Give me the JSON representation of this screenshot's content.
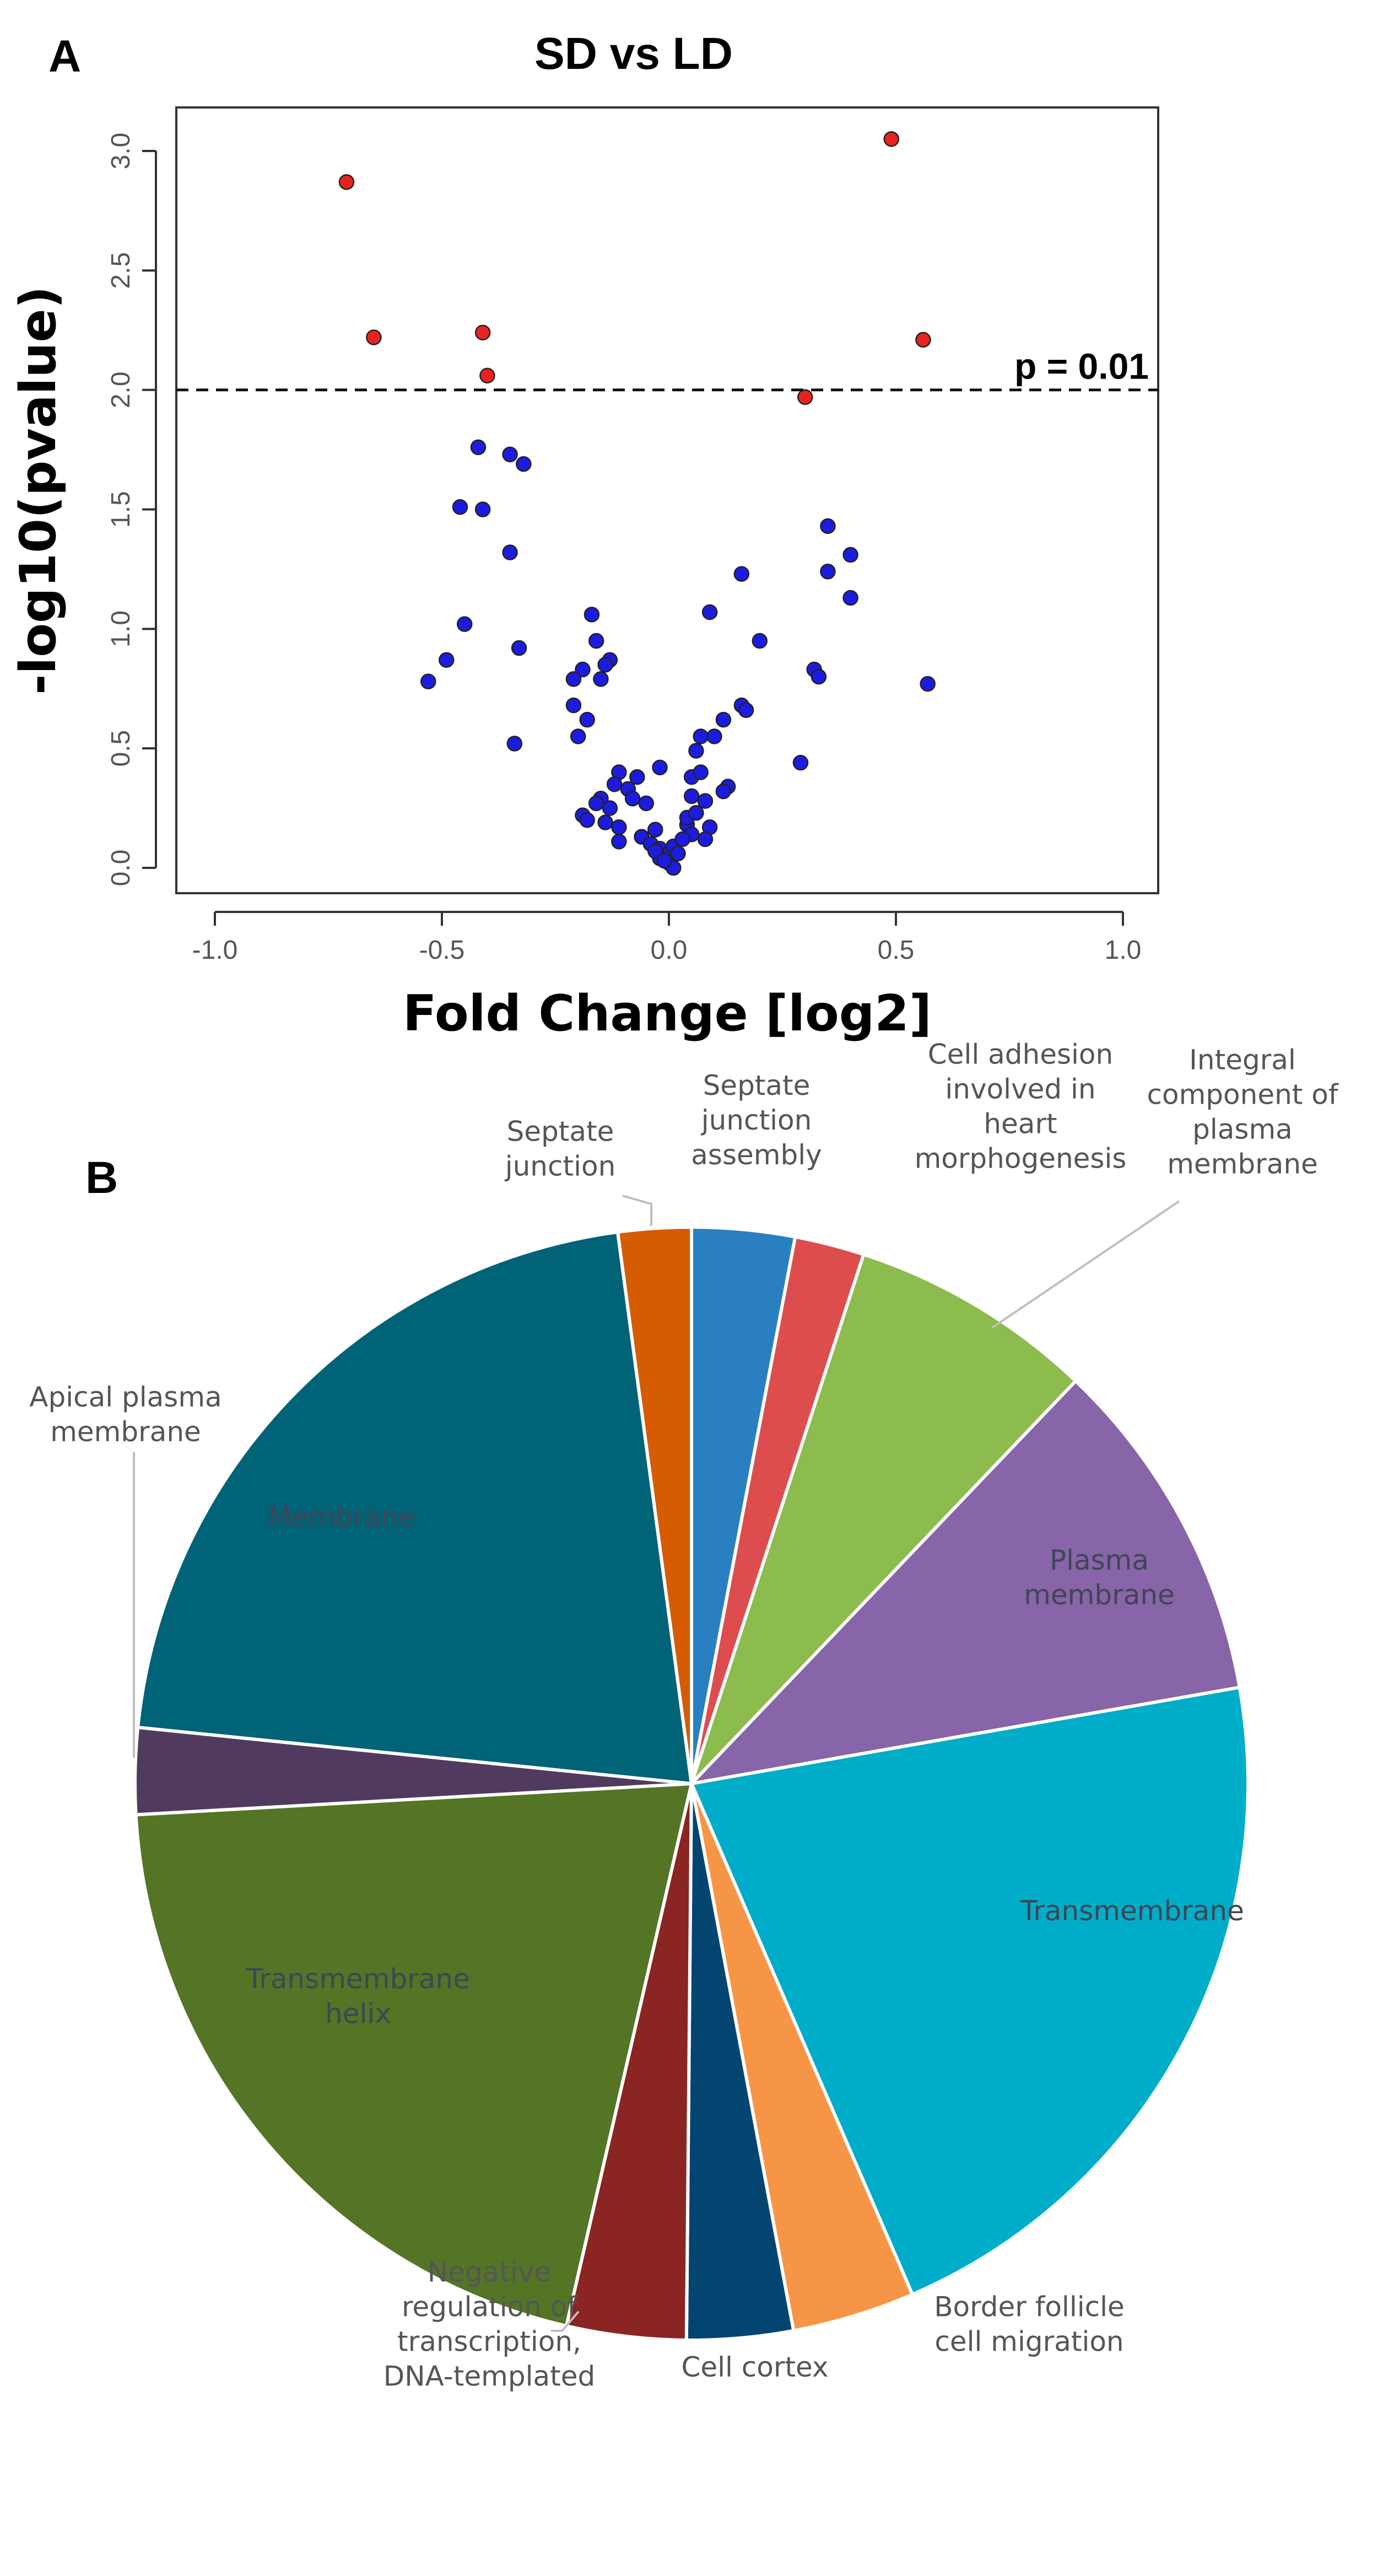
{
  "panels": {
    "a_letter": "A",
    "b_letter": "B"
  },
  "chart_data": [
    {
      "type": "scatter",
      "title": "SD vs LD",
      "xlabel": "Fold Change [log2]",
      "ylabel": "-log10(pvalue)",
      "xlim": [
        -1.0,
        1.0
      ],
      "ylim": [
        0.0,
        3.0
      ],
      "x_ticks": [
        "-1.0",
        "-0.5",
        "0.0",
        "0.5",
        "1.0"
      ],
      "y_ticks": [
        "0.0",
        "0.5",
        "1.0",
        "1.5",
        "2.0",
        "2.5",
        "3.0"
      ],
      "threshold": {
        "value": 2.0,
        "label": "p = 0.01"
      },
      "colors": {
        "significant": "#e8231f",
        "not_significant": "#1c1ce0",
        "outline": "#222222"
      },
      "series": [
        {
          "name": "significant",
          "points": [
            [
              -0.71,
              2.87
            ],
            [
              -0.65,
              2.22
            ],
            [
              -0.41,
              2.24
            ],
            [
              -0.4,
              2.06
            ],
            [
              0.3,
              1.97
            ],
            [
              0.49,
              3.05
            ],
            [
              0.56,
              2.21
            ]
          ]
        },
        {
          "name": "not significant",
          "points": [
            [
              -0.42,
              1.76
            ],
            [
              -0.35,
              1.73
            ],
            [
              -0.32,
              1.69
            ],
            [
              -0.46,
              1.51
            ],
            [
              -0.41,
              1.5
            ],
            [
              -0.35,
              1.32
            ],
            [
              -0.45,
              1.02
            ],
            [
              -0.49,
              0.87
            ],
            [
              -0.53,
              0.78
            ],
            [
              -0.33,
              0.92
            ],
            [
              -0.34,
              0.52
            ],
            [
              0.35,
              1.43
            ],
            [
              0.4,
              1.31
            ],
            [
              0.35,
              1.24
            ],
            [
              0.16,
              1.23
            ],
            [
              0.4,
              1.13
            ],
            [
              0.09,
              1.07
            ],
            [
              0.2,
              0.95
            ],
            [
              0.32,
              0.83
            ],
            [
              0.33,
              0.8
            ],
            [
              0.57,
              0.77
            ],
            [
              -0.17,
              1.06
            ],
            [
              -0.16,
              0.95
            ],
            [
              -0.13,
              0.87
            ],
            [
              -0.14,
              0.85
            ],
            [
              -0.19,
              0.83
            ],
            [
              -0.21,
              0.79
            ],
            [
              -0.15,
              0.79
            ],
            [
              -0.21,
              0.68
            ],
            [
              -0.18,
              0.62
            ],
            [
              -0.2,
              0.55
            ],
            [
              0.16,
              0.68
            ],
            [
              0.17,
              0.66
            ],
            [
              0.12,
              0.62
            ],
            [
              0.1,
              0.55
            ],
            [
              0.07,
              0.55
            ],
            [
              0.06,
              0.49
            ],
            [
              0.29,
              0.44
            ],
            [
              -0.11,
              0.4
            ],
            [
              -0.07,
              0.38
            ],
            [
              -0.12,
              0.35
            ],
            [
              -0.09,
              0.33
            ],
            [
              -0.02,
              0.42
            ],
            [
              0.05,
              0.38
            ],
            [
              0.07,
              0.4
            ],
            [
              0.13,
              0.34
            ],
            [
              0.12,
              0.32
            ],
            [
              -0.15,
              0.29
            ],
            [
              -0.16,
              0.27
            ],
            [
              -0.13,
              0.25
            ],
            [
              -0.08,
              0.29
            ],
            [
              -0.05,
              0.27
            ],
            [
              0.05,
              0.3
            ],
            [
              0.08,
              0.28
            ],
            [
              -0.19,
              0.22
            ],
            [
              -0.18,
              0.2
            ],
            [
              -0.14,
              0.19
            ],
            [
              -0.11,
              0.17
            ],
            [
              -0.03,
              0.16
            ],
            [
              0.04,
              0.18
            ],
            [
              0.05,
              0.14
            ],
            [
              0.09,
              0.17
            ],
            [
              -0.11,
              0.11
            ],
            [
              -0.06,
              0.13
            ],
            [
              -0.04,
              0.1
            ],
            [
              -0.02,
              0.08
            ],
            [
              0.0,
              0.06
            ],
            [
              0.01,
              0.09
            ],
            [
              0.03,
              0.12
            ],
            [
              0.08,
              0.12
            ],
            [
              -0.02,
              0.04
            ],
            [
              0.0,
              0.02
            ],
            [
              0.01,
              0.0
            ],
            [
              0.02,
              0.06
            ],
            [
              -0.03,
              0.07
            ],
            [
              0.04,
              0.21
            ],
            [
              0.06,
              0.23
            ],
            [
              -0.01,
              0.03
            ]
          ]
        }
      ]
    },
    {
      "type": "pie",
      "title": "",
      "slices": [
        {
          "label": "Septate junction assembly",
          "lines": [
            "Septate",
            "junction",
            "assembly"
          ],
          "value": 3.1,
          "color": "#2a7fc0",
          "label_position": "outside"
        },
        {
          "label": "Cell adhesion involved in heart morphogenesis",
          "lines": [
            "Cell adhesion",
            "involved in",
            "heart",
            "morphogenesis"
          ],
          "value": 2.1,
          "color": "#de4d4e",
          "label_position": "outside"
        },
        {
          "label": "Integral component of plasma membrane",
          "lines": [
            "Integral",
            "component of",
            "plasma",
            "membrane"
          ],
          "value": 7.4,
          "color": "#8cbb4e",
          "label_position": "outside"
        },
        {
          "label": "Plasma membrane",
          "lines": [
            "Plasma",
            "membrane"
          ],
          "value": 10.5,
          "color": "#8864a8",
          "label_position": "inside"
        },
        {
          "label": "Transmembrane",
          "lines": [
            "Transmembrane"
          ],
          "value": 22.1,
          "color": "#00adc9",
          "label_position": "inside"
        },
        {
          "label": "Border follicle cell migration",
          "lines": [
            "Border follicle",
            "cell migration"
          ],
          "value": 3.7,
          "color": "#f79547",
          "label_position": "outside"
        },
        {
          "label": "Cell cortex",
          "lines": [
            "Cell cortex"
          ],
          "value": 3.2,
          "color": "#034570",
          "label_position": "outside"
        },
        {
          "label": "Negative regulation of transcription, DNA-templated",
          "lines": [
            "Negative",
            "regulation of",
            "transcription,",
            "DNA-templated"
          ],
          "value": 3.6,
          "color": "#8b2524",
          "label_position": "outside"
        },
        {
          "label": "Transmembrane helix",
          "lines": [
            "Transmembrane",
            "helix"
          ],
          "value": 21.3,
          "color": "#537525",
          "label_position": "inside"
        },
        {
          "label": "Apical plasma membrane",
          "lines": [
            "Apical plasma",
            "membrane"
          ],
          "value": 2.6,
          "color": "#503b5e",
          "label_position": "outside"
        },
        {
          "label": "Membrane",
          "lines": [
            "Membrane"
          ],
          "value": 22.1,
          "color": "#006377",
          "label_position": "inside"
        },
        {
          "label": "Septate junction",
          "lines": [
            "Septate",
            "junction"
          ],
          "value": 2.2,
          "color": "#d65c04",
          "label_position": "outside"
        }
      ]
    }
  ]
}
